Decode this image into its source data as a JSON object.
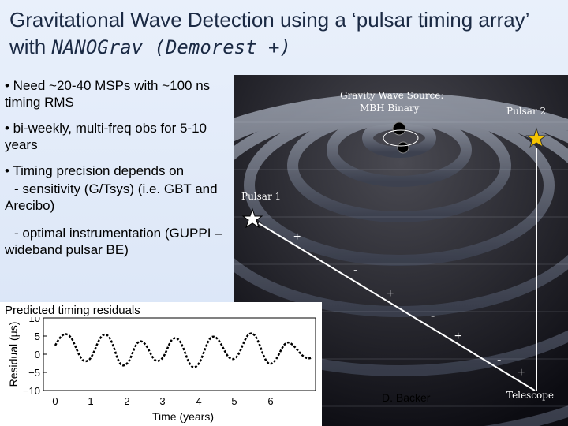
{
  "title": {
    "main": "Gravitational Wave Detection using a ‘pulsar timing array’ with",
    "tail": "NANOGrav (Demorest +)"
  },
  "bullets": [
    "• Need ~20-40 MSPs with  ~100 ns timing RMS",
    "• bi-weekly, multi-freq obs for 5-10 years",
    "• Timing precision depends on",
    "- sensitivity (G/Tsys) (i.e. GBT and Arecibo)",
    "- optimal instrumentation (GUPPI – wideband pulsar BE)"
  ],
  "figure": {
    "source_label_1": "Gravity Wave Source:",
    "source_label_2": "MBH Binary",
    "pulsar1": "Pulsar 1",
    "pulsar2": "Pulsar 2",
    "telescope": "Telescope",
    "credit": "D. Backer",
    "path_signs": [
      "+",
      "-",
      "+",
      "-",
      "+",
      "-",
      "+"
    ]
  },
  "residuals": {
    "caption": "Predicted timing residuals",
    "ylabel": "Residual (μs)",
    "xlabel": "Time (years)",
    "yticks": [
      "10",
      "5",
      "0",
      "−5",
      "−10"
    ],
    "xticks": [
      "0",
      "1",
      "2",
      "3",
      "4",
      "5",
      "6"
    ]
  }
}
